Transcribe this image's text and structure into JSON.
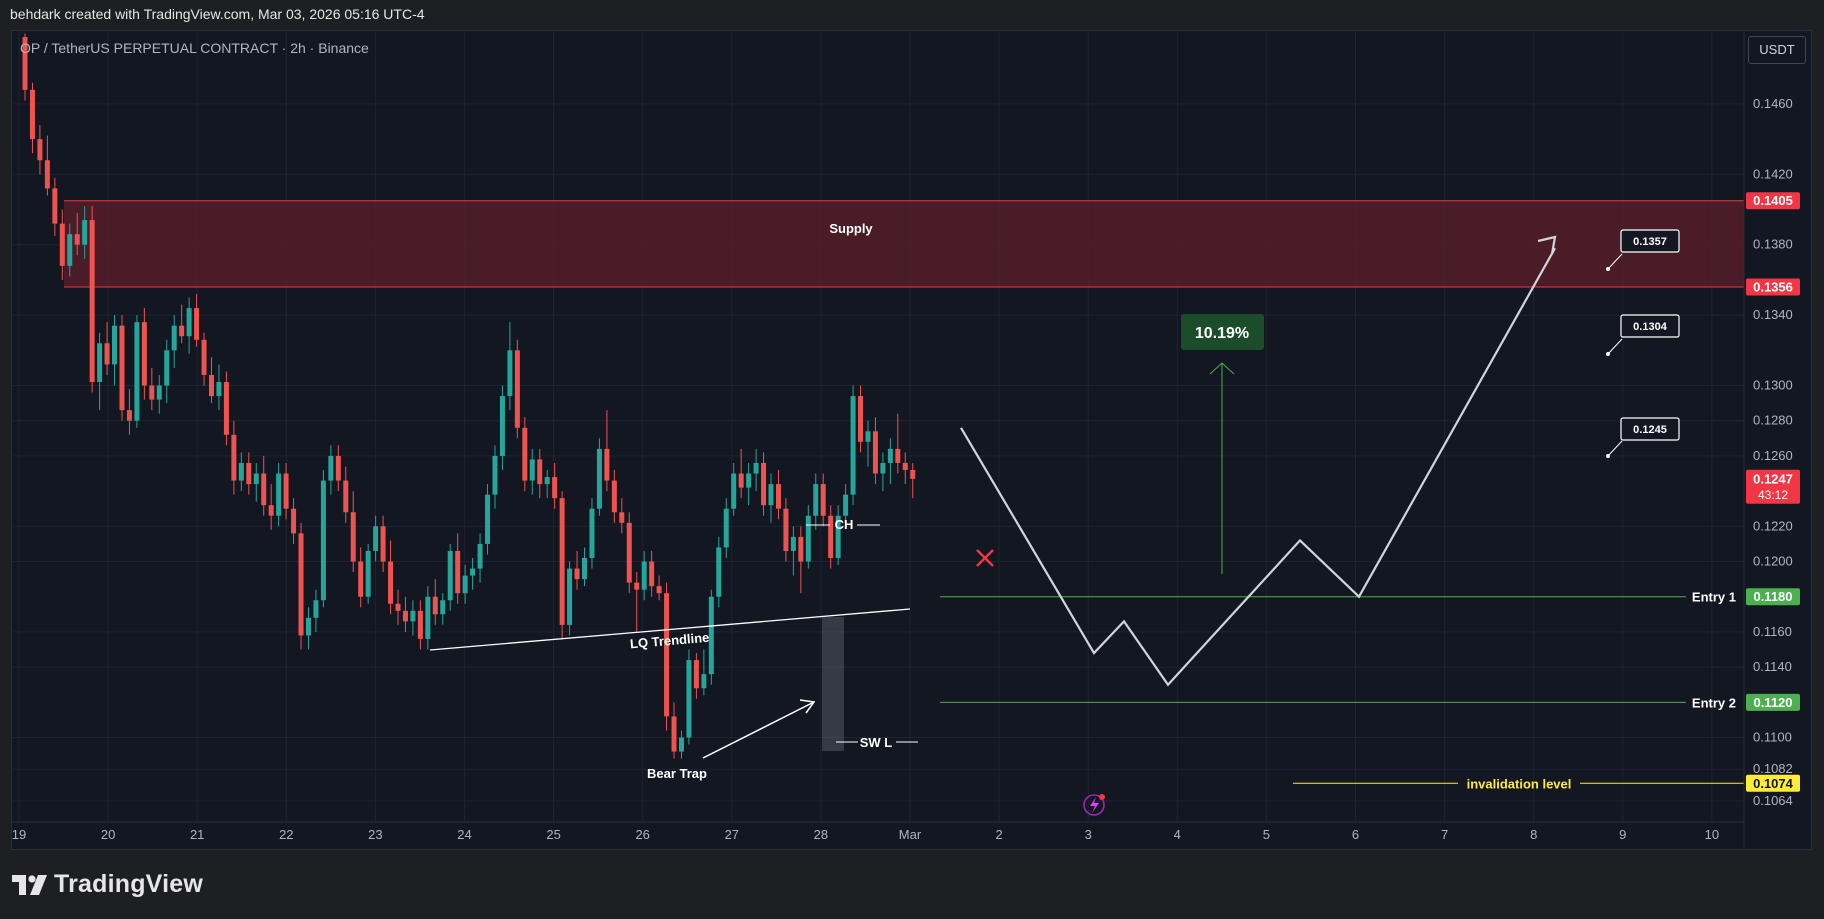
{
  "header": {
    "attribution": "behdark created with TradingView.com, Mar 03, 2026 05:16 UTC-4"
  },
  "symbol": {
    "label": "OP / TetherUS PERPETUAL CONTRACT · 2h · Binance"
  },
  "toolbar": {
    "currency_label": "USDT"
  },
  "footer": {
    "brand": "TradingView"
  },
  "colors": {
    "background": "#131722",
    "up": "#26a69a",
    "down": "#ef5350",
    "supply_fill": "#5c1f2b",
    "supply_line": "#f23645",
    "entry_line": "#4caf50",
    "invalidation_line": "#ffeb3b",
    "projection": "#d1d4dc"
  },
  "icons": [
    "tradingview-logo-icon",
    "lightning-icon",
    "cross-icon"
  ],
  "chart_data": {
    "type": "candlestick",
    "title": "OP / TetherUS PERPETUAL CONTRACT · 2h · Binance",
    "timeframe": "2h",
    "x_tick_labels": [
      "19",
      "20",
      "21",
      "22",
      "23",
      "24",
      "25",
      "26",
      "27",
      "28",
      "Mar",
      "2",
      "3",
      "4",
      "5",
      "6",
      "7",
      "8",
      "9",
      "10"
    ],
    "y_tick_labels": [
      "0.1460",
      "0.1420",
      "0.1380",
      "0.1340",
      "0.1300",
      "0.1280",
      "0.1260",
      "0.1220",
      "0.1200",
      "0.1160",
      "0.1140",
      "0.1100",
      "0.1082",
      "0.1064"
    ],
    "ylim": [
      0.1052,
      0.1502
    ],
    "price_tags": [
      {
        "value": "0.1405",
        "color": "#f23645"
      },
      {
        "value": "0.1356",
        "color": "#f23645"
      },
      {
        "value": "0.1247",
        "color": "#f23645",
        "sub": "43:12"
      },
      {
        "value": "0.1180",
        "color": "#4caf50"
      },
      {
        "value": "0.1120",
        "color": "#4caf50"
      },
      {
        "value": "0.1074",
        "color": "#ffeb3b"
      }
    ],
    "supply_zone": {
      "label": "Supply",
      "top": 0.1405,
      "bottom": 0.1356
    },
    "entries": [
      {
        "label": "Entry 1",
        "price": 0.118
      },
      {
        "label": "Entry 2",
        "price": 0.112
      }
    ],
    "invalidation": {
      "label": "invalidation level",
      "price": 0.1074
    },
    "targets": [
      "0.1357",
      "0.1304",
      "0.1245"
    ],
    "move_percent": "10.19%",
    "annotations": [
      "CH",
      "LQ Trendline",
      "SW L",
      "Bear Trap"
    ],
    "candles": [
      [
        0.1498,
        0.15,
        0.1462,
        0.1468
      ],
      [
        0.1468,
        0.1472,
        0.1432,
        0.144
      ],
      [
        0.144,
        0.1448,
        0.142,
        0.1428
      ],
      [
        0.1428,
        0.1442,
        0.1408,
        0.1412
      ],
      [
        0.1412,
        0.1418,
        0.1385,
        0.1392
      ],
      [
        0.1392,
        0.14,
        0.136,
        0.1368
      ],
      [
        0.1368,
        0.1392,
        0.1362,
        0.1386
      ],
      [
        0.1386,
        0.1398,
        0.1374,
        0.138
      ],
      [
        0.138,
        0.1402,
        0.1372,
        0.1394
      ],
      [
        0.1394,
        0.1402,
        0.1296,
        0.1302
      ],
      [
        0.1302,
        0.133,
        0.1286,
        0.1324
      ],
      [
        0.1324,
        0.1336,
        0.1306,
        0.1312
      ],
      [
        0.1312,
        0.134,
        0.13,
        0.1334
      ],
      [
        0.1334,
        0.134,
        0.128,
        0.1286
      ],
      [
        0.1286,
        0.1298,
        0.1272,
        0.128
      ],
      [
        0.128,
        0.134,
        0.1276,
        0.1336
      ],
      [
        0.1336,
        0.1344,
        0.1292,
        0.13
      ],
      [
        0.13,
        0.131,
        0.1286,
        0.1292
      ],
      [
        0.1292,
        0.1306,
        0.1284,
        0.13
      ],
      [
        0.13,
        0.1326,
        0.129,
        0.132
      ],
      [
        0.132,
        0.134,
        0.131,
        0.1334
      ],
      [
        0.1334,
        0.1346,
        0.1324,
        0.1328
      ],
      [
        0.1328,
        0.135,
        0.1318,
        0.1344
      ],
      [
        0.1344,
        0.1352,
        0.1322,
        0.1326
      ],
      [
        0.1326,
        0.133,
        0.13,
        0.1306
      ],
      [
        0.1306,
        0.1316,
        0.129,
        0.1294
      ],
      [
        0.1294,
        0.1312,
        0.1286,
        0.1302
      ],
      [
        0.1302,
        0.1308,
        0.1266,
        0.1272
      ],
      [
        0.1272,
        0.128,
        0.1238,
        0.1246
      ],
      [
        0.1246,
        0.1262,
        0.124,
        0.1256
      ],
      [
        0.1256,
        0.1262,
        0.1238,
        0.1244
      ],
      [
        0.1244,
        0.1256,
        0.1234,
        0.125
      ],
      [
        0.125,
        0.126,
        0.1226,
        0.1232
      ],
      [
        0.1232,
        0.1244,
        0.1218,
        0.1226
      ],
      [
        0.1226,
        0.1256,
        0.122,
        0.125
      ],
      [
        0.125,
        0.1256,
        0.1224,
        0.123
      ],
      [
        0.123,
        0.1236,
        0.121,
        0.1216
      ],
      [
        0.1216,
        0.1222,
        0.115,
        0.1158
      ],
      [
        0.1158,
        0.1174,
        0.115,
        0.1168
      ],
      [
        0.1168,
        0.1184,
        0.116,
        0.1178
      ],
      [
        0.1178,
        0.1252,
        0.1174,
        0.1246
      ],
      [
        0.1246,
        0.1266,
        0.1238,
        0.126
      ],
      [
        0.126,
        0.1266,
        0.124,
        0.1246
      ],
      [
        0.1246,
        0.1254,
        0.1222,
        0.1228
      ],
      [
        0.1228,
        0.124,
        0.1194,
        0.12
      ],
      [
        0.12,
        0.1208,
        0.1174,
        0.118
      ],
      [
        0.118,
        0.121,
        0.1176,
        0.1206
      ],
      [
        0.1206,
        0.1226,
        0.12,
        0.122
      ],
      [
        0.122,
        0.1226,
        0.1194,
        0.12
      ],
      [
        0.12,
        0.1212,
        0.117,
        0.1176
      ],
      [
        0.1176,
        0.1184,
        0.1164,
        0.1172
      ],
      [
        0.1172,
        0.118,
        0.116,
        0.1166
      ],
      [
        0.1166,
        0.1178,
        0.1158,
        0.1172
      ],
      [
        0.1172,
        0.1178,
        0.115,
        0.1156
      ],
      [
        0.1156,
        0.1186,
        0.115,
        0.118
      ],
      [
        0.118,
        0.119,
        0.1164,
        0.117
      ],
      [
        0.117,
        0.1182,
        0.1164,
        0.1178
      ],
      [
        0.1178,
        0.121,
        0.1172,
        0.1206
      ],
      [
        0.1206,
        0.1216,
        0.1176,
        0.1182
      ],
      [
        0.1182,
        0.1198,
        0.1176,
        0.1192
      ],
      [
        0.1192,
        0.1202,
        0.1184,
        0.1196
      ],
      [
        0.1196,
        0.1216,
        0.1188,
        0.121
      ],
      [
        0.121,
        0.1244,
        0.1204,
        0.1238
      ],
      [
        0.1238,
        0.1266,
        0.123,
        0.126
      ],
      [
        0.126,
        0.13,
        0.1252,
        0.1294
      ],
      [
        0.1294,
        0.1336,
        0.1286,
        0.132
      ],
      [
        0.132,
        0.1326,
        0.127,
        0.1276
      ],
      [
        0.1276,
        0.1282,
        0.124,
        0.1246
      ],
      [
        0.1246,
        0.1264,
        0.1238,
        0.1258
      ],
      [
        0.1258,
        0.1264,
        0.1236,
        0.1244
      ],
      [
        0.1244,
        0.1252,
        0.1236,
        0.1248
      ],
      [
        0.1248,
        0.1256,
        0.123,
        0.1236
      ],
      [
        0.1236,
        0.124,
        0.1156,
        0.1164
      ],
      [
        0.1164,
        0.12,
        0.1158,
        0.1196
      ],
      [
        0.1196,
        0.1206,
        0.1184,
        0.119
      ],
      [
        0.119,
        0.1208,
        0.1186,
        0.1202
      ],
      [
        0.1202,
        0.1236,
        0.1196,
        0.123
      ],
      [
        0.123,
        0.127,
        0.1226,
        0.1264
      ],
      [
        0.1264,
        0.1286,
        0.124,
        0.1246
      ],
      [
        0.1246,
        0.1252,
        0.1222,
        0.1228
      ],
      [
        0.1228,
        0.1236,
        0.1216,
        0.1222
      ],
      [
        0.1222,
        0.1228,
        0.1182,
        0.1188
      ],
      [
        0.1188,
        0.1194,
        0.116,
        0.1184
      ],
      [
        0.1184,
        0.1206,
        0.1178,
        0.12
      ],
      [
        0.12,
        0.1206,
        0.118,
        0.1186
      ],
      [
        0.1186,
        0.1192,
        0.1178,
        0.1182
      ],
      [
        0.1182,
        0.1188,
        0.1104,
        0.1112
      ],
      [
        0.1112,
        0.112,
        0.1088,
        0.1092
      ],
      [
        0.1092,
        0.1104,
        0.1088,
        0.11
      ],
      [
        0.11,
        0.115,
        0.1096,
        0.1144
      ],
      [
        0.1144,
        0.1148,
        0.1122,
        0.1128
      ],
      [
        0.1128,
        0.115,
        0.1124,
        0.1136
      ],
      [
        0.1136,
        0.1184,
        0.113,
        0.118
      ],
      [
        0.118,
        0.1214,
        0.1174,
        0.1208
      ],
      [
        0.1208,
        0.1236,
        0.1202,
        0.123
      ],
      [
        0.123,
        0.1256,
        0.1226,
        0.125
      ],
      [
        0.125,
        0.1264,
        0.1236,
        0.1242
      ],
      [
        0.1242,
        0.1256,
        0.1232,
        0.125
      ],
      [
        0.125,
        0.1264,
        0.124,
        0.1256
      ],
      [
        0.1256,
        0.1262,
        0.1226,
        0.1232
      ],
      [
        0.1232,
        0.125,
        0.1222,
        0.1244
      ],
      [
        0.1244,
        0.1252,
        0.1224,
        0.123
      ],
      [
        0.123,
        0.1236,
        0.12,
        0.1206
      ],
      [
        0.1206,
        0.122,
        0.1192,
        0.1214
      ],
      [
        0.1214,
        0.122,
        0.1182,
        0.12
      ],
      [
        0.12,
        0.1232,
        0.1196,
        0.1226
      ],
      [
        0.1226,
        0.125,
        0.1218,
        0.1244
      ],
      [
        0.1244,
        0.125,
        0.122,
        0.1226
      ],
      [
        0.1226,
        0.1232,
        0.1196,
        0.1202
      ],
      [
        0.1202,
        0.1232,
        0.1198,
        0.1226
      ],
      [
        0.1226,
        0.1244,
        0.122,
        0.1238
      ],
      [
        0.1238,
        0.13,
        0.1232,
        0.1294
      ],
      [
        0.1294,
        0.13,
        0.1262,
        0.1268
      ],
      [
        0.1268,
        0.128,
        0.1254,
        0.1274
      ],
      [
        0.1274,
        0.1282,
        0.1244,
        0.125
      ],
      [
        0.125,
        0.1262,
        0.124,
        0.1256
      ],
      [
        0.1256,
        0.127,
        0.1244,
        0.1264
      ],
      [
        0.1264,
        0.1284,
        0.125,
        0.1256
      ],
      [
        0.1256,
        0.1262,
        0.1244,
        0.1252
      ],
      [
        0.1252,
        0.1256,
        0.1236,
        0.1247
      ]
    ],
    "projection_path_prices": [
      0.1276,
      0.1148,
      0.1166,
      0.113,
      0.1212,
      0.118,
      0.1378
    ]
  }
}
